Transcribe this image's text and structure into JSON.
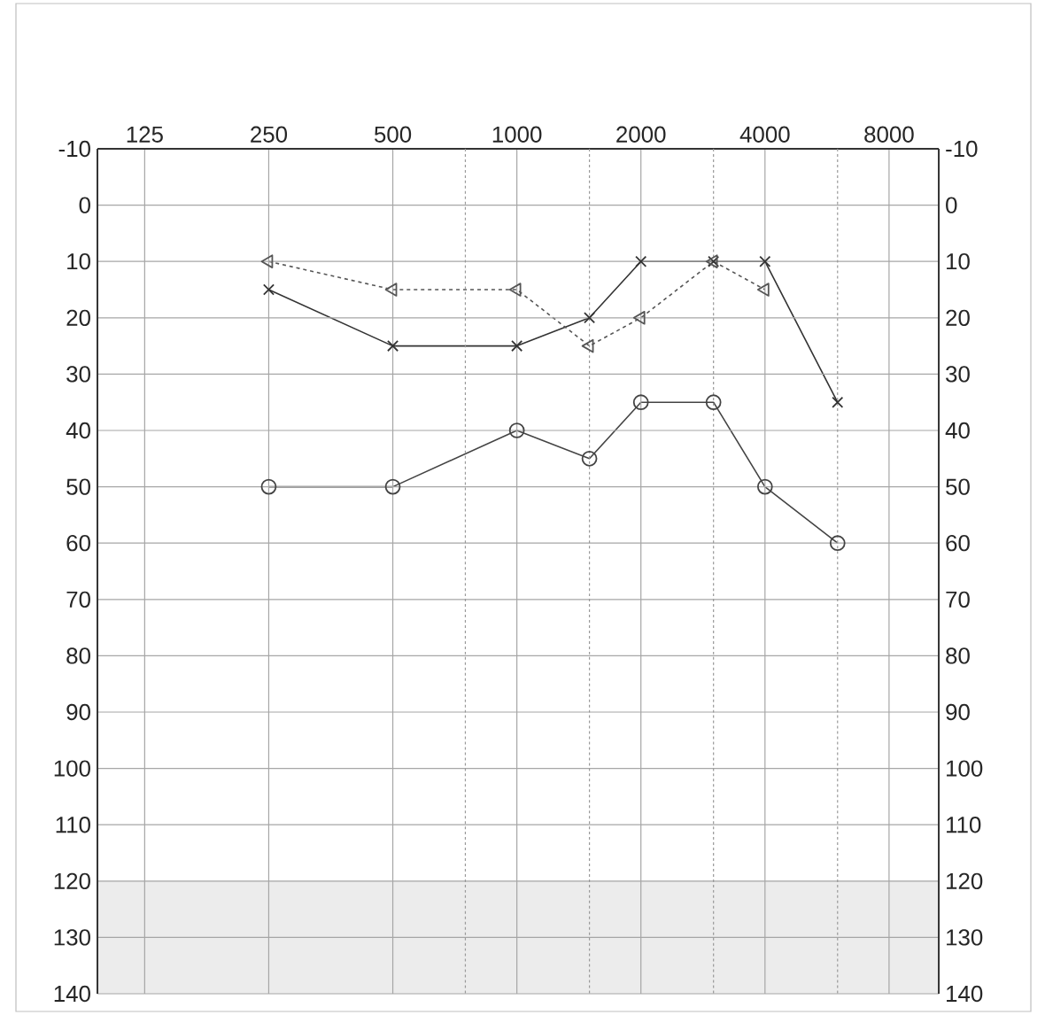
{
  "chart_data": {
    "type": "line",
    "log": "x",
    "x": [
      250,
      500,
      1000,
      1500,
      2000,
      3000,
      4000,
      6000
    ],
    "series": [
      {
        "color": "#333333",
        "marker": "cross",
        "line_style": "solid",
        "values": [
          15,
          25,
          25,
          20,
          10,
          10,
          10,
          35
        ]
      },
      {
        "color": "#555555",
        "marker": "triangle",
        "line_style": "dotted",
        "values": [
          10,
          15,
          15,
          25,
          20,
          10,
          15,
          null
        ]
      },
      {
        "color": "#444444",
        "marker": "circle",
        "line_style": "solid",
        "values": [
          50,
          50,
          40,
          45,
          35,
          35,
          50,
          60
        ]
      }
    ],
    "xlim": [
      96,
      10560
    ],
    "xticks": [
      125,
      250,
      500,
      1000,
      2000,
      4000,
      8000,
      {
        "value": 750,
        "label": null
      },
      {
        "value": 1500,
        "label": null
      },
      {
        "value": 3000,
        "label": null
      },
      {
        "value": 6000,
        "label": null
      }
    ],
    "ylim": [
      140,
      -10
    ],
    "yticks": [
      -10,
      0,
      10,
      20,
      30,
      40,
      50,
      60,
      70,
      80,
      90,
      100,
      110,
      120,
      130,
      140
    ],
    "y2lim": [
      140,
      -10
    ],
    "y2ticks": [
      -10,
      0,
      10,
      20,
      30,
      40,
      50,
      60,
      70,
      80,
      90,
      100,
      110,
      120,
      130,
      140
    ],
    "bands": [
      {
        "axis": "y",
        "from": 120,
        "to": 140,
        "color": "#ececec"
      }
    ],
    "grid": true
  }
}
